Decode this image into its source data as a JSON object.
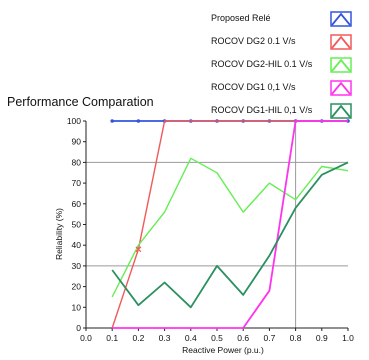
{
  "chart_data": {
    "type": "line",
    "title": "Performance Comparation",
    "xlabel": "Reactive Power (p.u.)",
    "ylabel": "Reliability (%)",
    "xlim": [
      0,
      1
    ],
    "ylim": [
      0,
      100
    ],
    "x_ticks": [
      "0.0",
      "0.1",
      "0.2",
      "0.3",
      "0.4",
      "0.5",
      "0.6",
      "0.7",
      "0.8",
      "0.9",
      "1.0"
    ],
    "y_ticks": [
      "0",
      "10",
      "20",
      "30",
      "40",
      "50",
      "60",
      "70",
      "80",
      "90",
      "100"
    ],
    "grid": {
      "horizontal": [
        30,
        80
      ],
      "vertical": [
        0.8
      ]
    },
    "legend_position": "top-right",
    "series": [
      {
        "name": "Proposed Relé",
        "color": "#3355dd",
        "width": 1.8,
        "marker": "dot",
        "x": [
          0.1,
          0.2,
          0.3,
          0.4,
          0.5,
          0.6,
          0.7,
          0.8,
          0.9,
          1.0
        ],
        "y": [
          100,
          100,
          100,
          100,
          100,
          100,
          100,
          100,
          100,
          100
        ]
      },
      {
        "name": "ROCOV DG2 0.1 V/s",
        "color": "#f05a5a",
        "width": 1.4,
        "marker": "none",
        "x": [
          0.1,
          0.2,
          0.3,
          0.4,
          0.5,
          0.6,
          0.7,
          0.8,
          0.9,
          1.0
        ],
        "y": [
          0,
          38,
          100,
          100,
          100,
          100,
          100,
          100,
          100,
          100
        ]
      },
      {
        "name": "ROCOV DG2-HIL 0.1 V/s",
        "color": "#66ee55",
        "width": 1.4,
        "marker": "none",
        "x": [
          0.1,
          0.2,
          0.3,
          0.4,
          0.5,
          0.6,
          0.7,
          0.8,
          0.9,
          1.0
        ],
        "y": [
          15,
          40,
          56,
          82,
          75,
          56,
          70,
          62,
          78,
          76
        ]
      },
      {
        "name": "ROCOV DG1 0,1 V/s",
        "color": "#ff33ee",
        "width": 1.8,
        "marker": "none",
        "x": [
          0.1,
          0.2,
          0.3,
          0.4,
          0.5,
          0.6,
          0.7,
          0.8,
          0.9,
          1.0
        ],
        "y": [
          0,
          0,
          0,
          0,
          0,
          0,
          18,
          100,
          100,
          100
        ]
      },
      {
        "name": "ROCOV DG1-HIL 0,1 V/s",
        "color": "#2a9060",
        "width": 1.8,
        "marker": "none",
        "x": [
          0.1,
          0.2,
          0.3,
          0.4,
          0.5,
          0.6,
          0.7,
          0.8,
          0.9,
          1.0
        ],
        "y": [
          28,
          11,
          22,
          10,
          30,
          16,
          35,
          58,
          74,
          80
        ]
      }
    ]
  }
}
